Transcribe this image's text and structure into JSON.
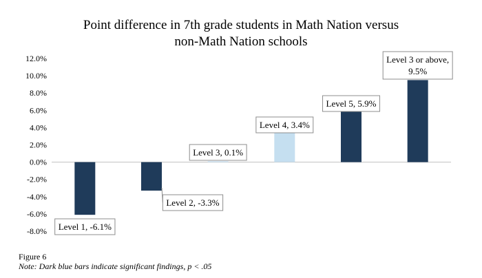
{
  "chart_data": {
    "type": "bar",
    "title_lines": [
      "Point difference in 7th grade students in Math Nation versus",
      "non-Math Nation schools"
    ],
    "categories": [
      "Level 1",
      "Level 2",
      "Level 3",
      "Level 4",
      "Level 5",
      "Level 3 or above"
    ],
    "values": [
      -6.1,
      -3.3,
      0.1,
      3.4,
      5.9,
      9.5
    ],
    "significant": [
      true,
      true,
      false,
      false,
      true,
      true
    ],
    "data_labels": [
      [
        "Level 1, -6.1%"
      ],
      [
        "Level 2, -3.3%"
      ],
      [
        "Level 3, 0.1%"
      ],
      [
        "Level 4, 3.4%"
      ],
      [
        "Level 5, 5.9%"
      ],
      [
        "Level 3 or above,",
        "9.5%"
      ]
    ],
    "ylim": [
      -8,
      12
    ],
    "yticks": [
      -8,
      -6,
      -4,
      -2,
      0,
      2,
      4,
      6,
      8,
      10,
      12
    ],
    "ytick_labels": [
      "-8.0%",
      "-6.0%",
      "-4.0%",
      "-2.0%",
      "0.0%",
      "2.0%",
      "4.0%",
      "6.0%",
      "8.0%",
      "10.0%",
      "12.0%"
    ],
    "xlabel": "",
    "ylabel": "",
    "grid": false,
    "legend": "none",
    "colors": {
      "significant": "#1f3b5a",
      "not_significant": "#c5dff0",
      "axis": "#bfbfbf",
      "callout_border": "#8c8c8c"
    }
  },
  "caption": {
    "figure": "Figure 6",
    "note": "Note: Dark blue bars indicate significant findings, p < .05"
  }
}
